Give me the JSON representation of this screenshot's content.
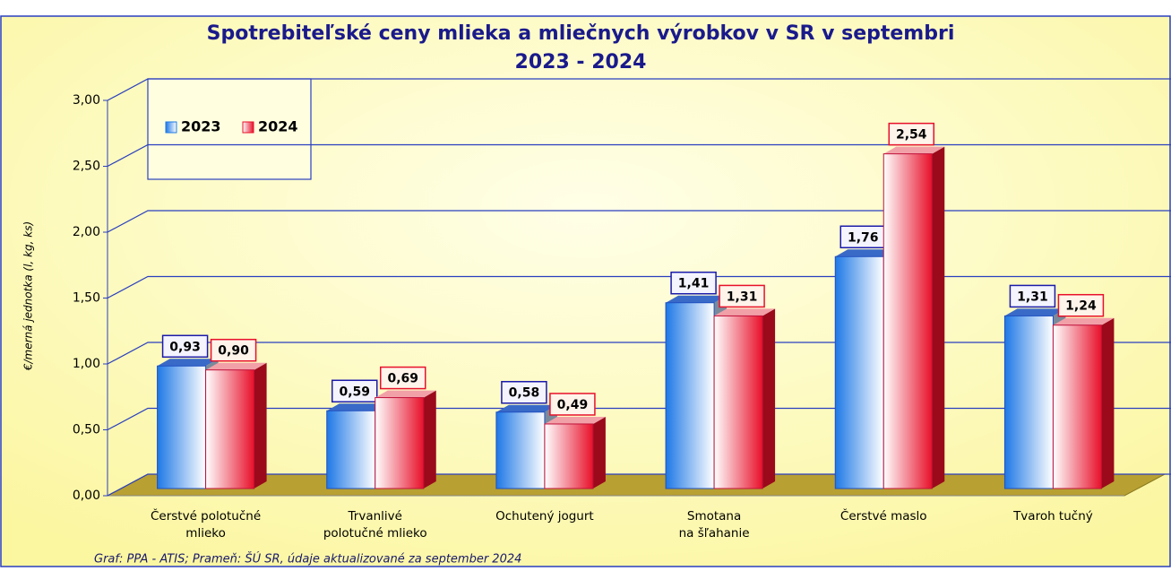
{
  "chart_data": {
    "type": "bar3d",
    "title": "Spotrebiteľské ceny mlieka a mliečnych výrobkov v SR v septembri",
    "subtitle": "2023 - 2024",
    "y_label": "€/merná jednotka (l, kg, ks)",
    "source": "Graf: PPA - ATIS; Prameň: ŠÚ SR, údaje aktualizované za september 2024",
    "categories": [
      [
        "Čerstvé polotučné",
        "mlieko"
      ],
      [
        "Trvanlivé",
        "polotučné mlieko"
      ],
      [
        "Ochutený jogurt"
      ],
      [
        "Smotana",
        "na šľahanie"
      ],
      [
        "Čerstvé maslo"
      ],
      [
        "Tvaroh tučný"
      ]
    ],
    "series": [
      {
        "name": "2023",
        "color": "#1e78e6",
        "values": [
          0.93,
          0.59,
          0.58,
          1.41,
          1.76,
          1.31
        ],
        "value_labels": [
          "0,93",
          "0,59",
          "0,58",
          "1,41",
          "1,76",
          "1,31"
        ]
      },
      {
        "name": "2024",
        "color": "#e8102a",
        "values": [
          0.9,
          0.69,
          0.49,
          1.31,
          2.54,
          1.24
        ],
        "value_labels": [
          "0,90",
          "0,69",
          "0,49",
          "1,31",
          "2,54",
          "1,24"
        ]
      }
    ],
    "ylim": [
      0,
      3
    ],
    "yticks": [
      {
        "value": 0,
        "label": "0,00"
      },
      {
        "value": 0.5,
        "label": "0,50"
      },
      {
        "value": 1,
        "label": "1,00"
      },
      {
        "value": 1.5,
        "label": "1,50"
      },
      {
        "value": 2,
        "label": "2,00"
      },
      {
        "value": 2.5,
        "label": "2,50"
      },
      {
        "value": 3,
        "label": "3,00"
      }
    ],
    "grid": true,
    "legend": "top-left"
  }
}
